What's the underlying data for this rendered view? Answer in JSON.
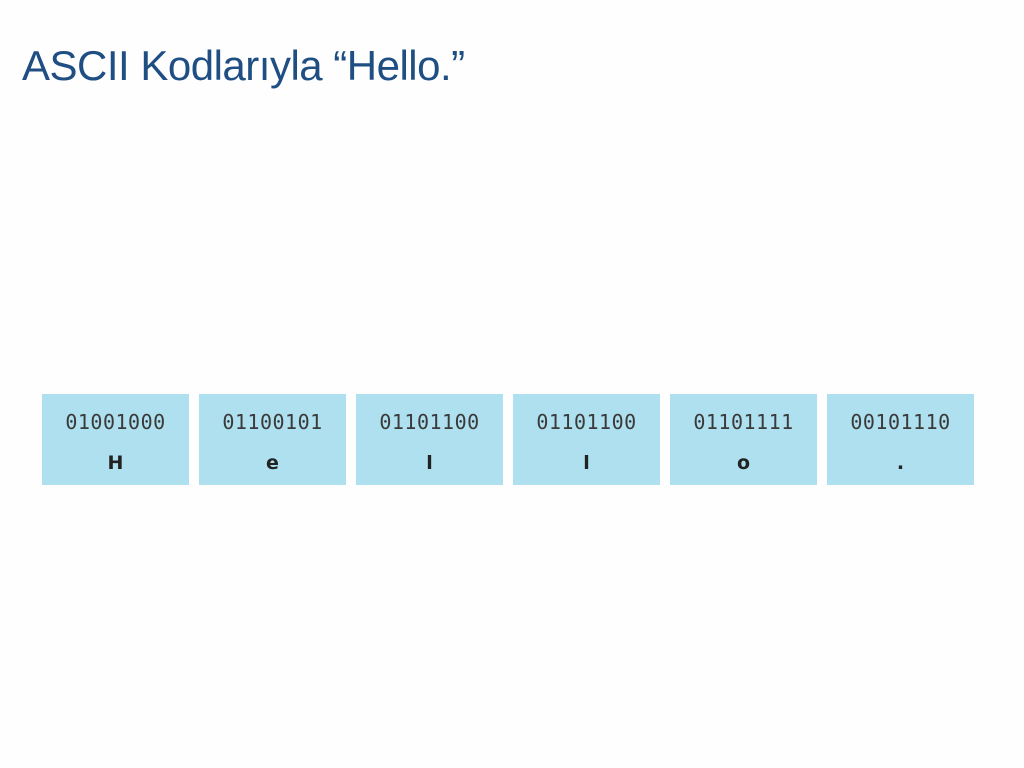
{
  "header": {
    "title": "ASCII Kodlarıyla “Hello.”"
  },
  "cells": [
    {
      "code": "01001000",
      "char": "H"
    },
    {
      "code": "01100101",
      "char": "e"
    },
    {
      "code": "01101100",
      "char": "l"
    },
    {
      "code": "01101100",
      "char": "l"
    },
    {
      "code": "01101111",
      "char": "o"
    },
    {
      "code": "00101110",
      "char": "."
    }
  ]
}
